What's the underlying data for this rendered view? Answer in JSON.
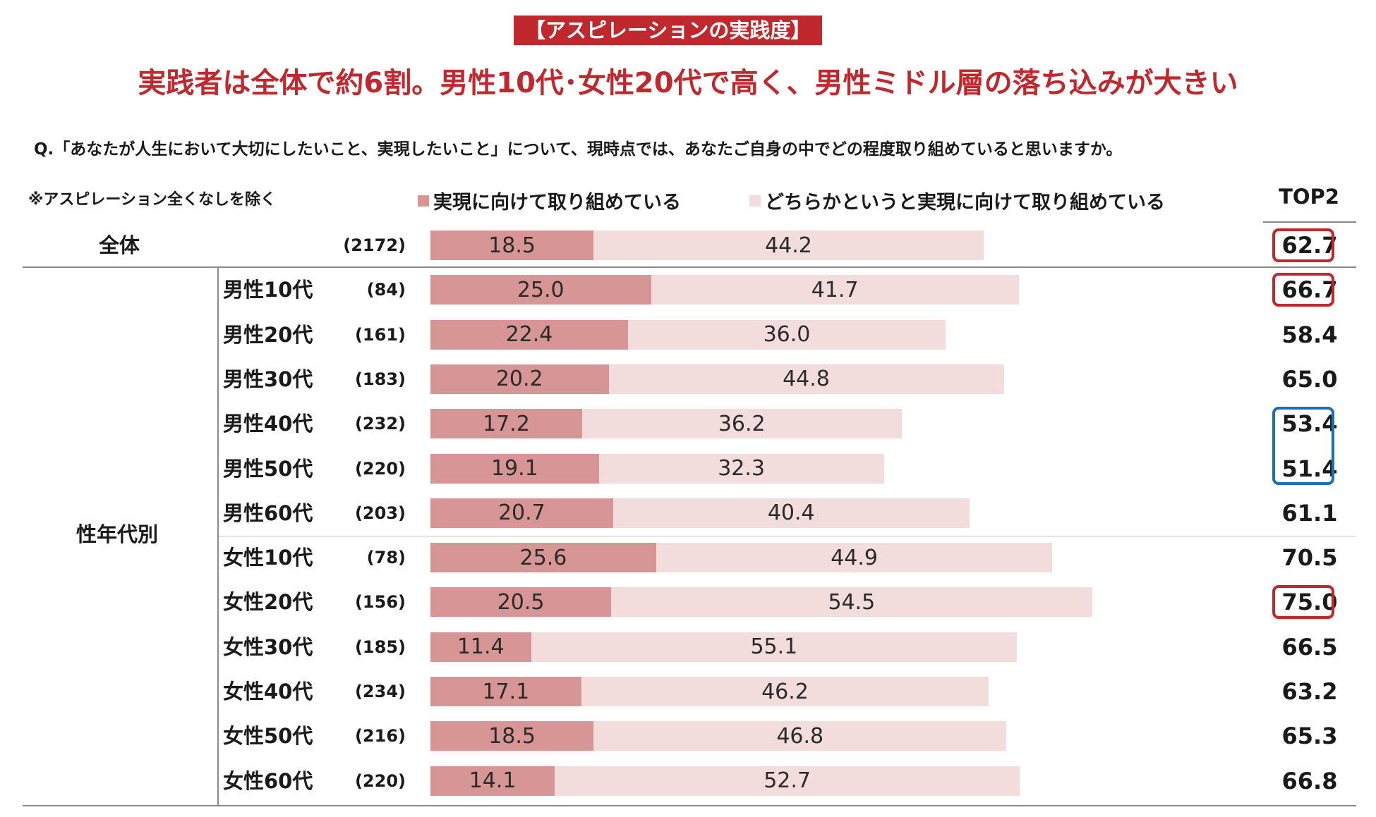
{
  "header": {
    "tag": "【アスピレーションの実践度】",
    "headline": "実践者は全体で約6割。男性10代･女性20代で高く、男性ミドル層の落ち込みが大きい",
    "question": "Q.「あなたが人生において大切にしたいこと、実現したいこと」について、現時点では、あなたご自身の中でどの程度取り組めていると思いますか。",
    "note": "※アスピレーション全くなしを除く",
    "top2_label": "TOP2"
  },
  "colors": {
    "accent": "#c0282d",
    "series1": "#d89596",
    "series2": "#f2dcdc",
    "highlight_red": "#c0282d",
    "highlight_blue": "#1f6fb5"
  },
  "chart_data": {
    "type": "bar",
    "stacked": true,
    "orientation": "horizontal",
    "categories": [
      "全体",
      "男性10代",
      "男性20代",
      "男性30代",
      "男性40代",
      "男性50代",
      "男性60代",
      "女性10代",
      "女性20代",
      "女性30代",
      "女性40代",
      "女性50代",
      "女性60代"
    ],
    "group_label": "性年代別",
    "sample_sizes": [
      "(2172)",
      "(84)",
      "(161)",
      "(183)",
      "(232)",
      "(220)",
      "(203)",
      "(78)",
      "(156)",
      "(185)",
      "(234)",
      "(216)",
      "(220)"
    ],
    "series": [
      {
        "name": "実現に向けて取り組めている",
        "values": [
          18.5,
          25.0,
          22.4,
          20.2,
          17.2,
          19.1,
          20.7,
          25.6,
          20.5,
          11.4,
          17.1,
          18.5,
          14.1
        ]
      },
      {
        "name": "どちらかというと実現に向けて取り組めている",
        "values": [
          44.2,
          41.7,
          36.0,
          44.8,
          36.2,
          32.3,
          40.4,
          44.9,
          54.5,
          55.1,
          46.2,
          46.8,
          52.7
        ]
      }
    ],
    "top2": [
      "62.7",
      "66.7",
      "58.4",
      "65.0",
      "53.4",
      "51.4",
      "61.1",
      "70.5",
      "75.0",
      "66.5",
      "63.2",
      "65.3",
      "66.8"
    ],
    "highlights": [
      {
        "rows": [
          0
        ],
        "color": "red"
      },
      {
        "rows": [
          1
        ],
        "color": "red"
      },
      {
        "rows": [
          4,
          5
        ],
        "color": "blue"
      },
      {
        "rows": [
          8
        ],
        "color": "red"
      }
    ]
  }
}
